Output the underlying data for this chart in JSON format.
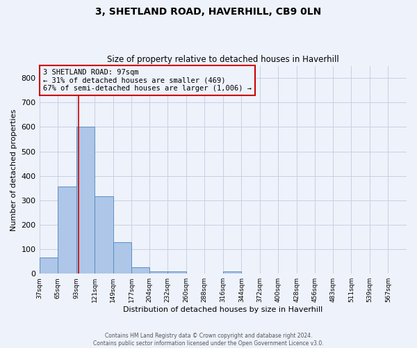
{
  "title1": "3, SHETLAND ROAD, HAVERHILL, CB9 0LN",
  "title2": "Size of property relative to detached houses in Haverhill",
  "xlabel": "Distribution of detached houses by size in Haverhill",
  "ylabel": "Number of detached properties",
  "footnote1": "Contains HM Land Registry data © Crown copyright and database right 2024.",
  "footnote2": "Contains public sector information licensed under the Open Government Licence v3.0.",
  "annotation_line1": "3 SHETLAND ROAD: 97sqm",
  "annotation_line2": "← 31% of detached houses are smaller (469)",
  "annotation_line3": "67% of semi-detached houses are larger (1,006) →",
  "bar_edges": [
    37,
    65,
    93,
    121,
    149,
    177,
    204,
    232,
    260,
    288,
    316,
    344,
    372,
    400,
    428,
    456,
    483,
    511,
    539,
    567,
    595
  ],
  "bar_heights": [
    65,
    357,
    600,
    316,
    128,
    27,
    10,
    10,
    0,
    0,
    10,
    0,
    0,
    0,
    0,
    0,
    0,
    0,
    0,
    0
  ],
  "bar_color": "#aec6e8",
  "bar_edgecolor": "#5a8fc0",
  "vline_x": 97,
  "vline_color": "#cc0000",
  "annotation_box_color": "#cc0000",
  "background_color": "#eef2fb",
  "grid_color": "#c8cfe0",
  "ylim": [
    0,
    850
  ],
  "yticks": [
    0,
    100,
    200,
    300,
    400,
    500,
    600,
    700,
    800
  ],
  "figsize": [
    6.0,
    5.0
  ],
  "dpi": 100
}
